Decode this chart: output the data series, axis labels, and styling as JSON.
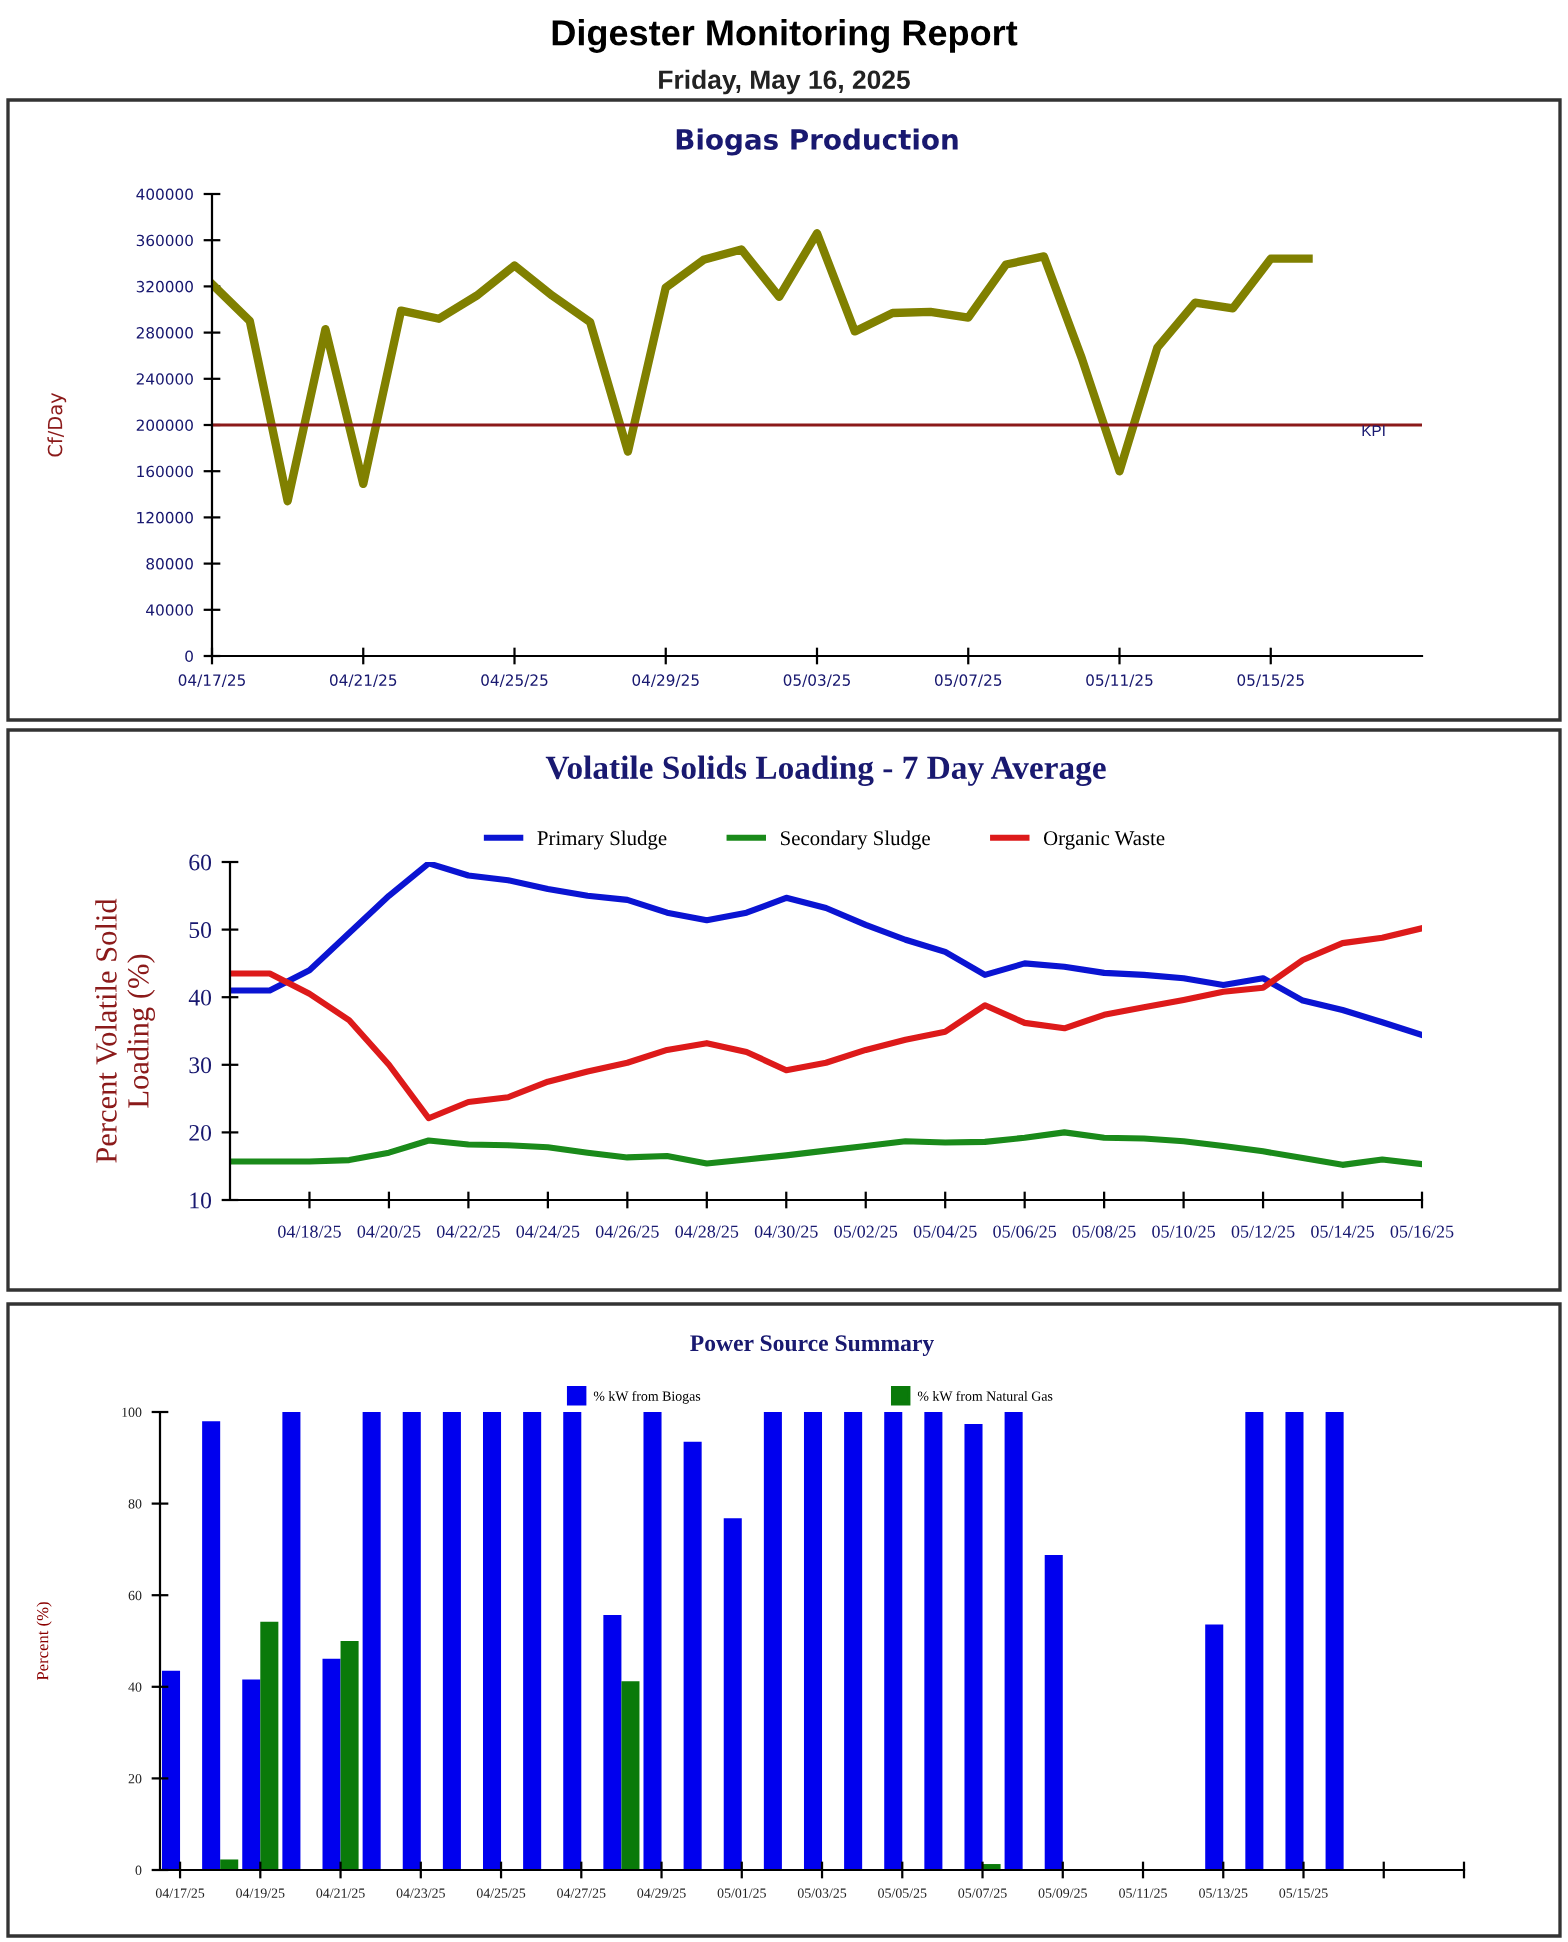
{
  "chart_data": [
    {
      "type": "other",
      "title": "Digester Monitoring Report",
      "subtitle": "Friday, May 16, 2025"
    },
    {
      "type": "line",
      "title": "Biogas Production",
      "ylabel": "Cf/Day",
      "grid": false,
      "legend": false,
      "marker": "none",
      "line_style": "solid",
      "x": [
        "2025-04-17",
        "2025-04-18",
        "2025-04-19",
        "2025-04-20",
        "2025-04-21",
        "2025-04-22",
        "2025-04-23",
        "2025-04-24",
        "2025-04-25",
        "2025-04-26",
        "2025-04-27",
        "2025-04-28",
        "2025-04-29",
        "2025-04-30",
        "2025-05-01",
        "2025-05-02",
        "2025-05-03",
        "2025-05-04",
        "2025-05-05",
        "2025-05-06",
        "2025-05-07",
        "2025-05-08",
        "2025-05-09",
        "2025-05-10",
        "2025-05-11",
        "2025-05-12",
        "2025-05-13",
        "2025-05-14",
        "2025-05-15",
        "2025-05-16"
      ],
      "series": [
        {
          "color": "#808000",
          "values": [
            322000,
            290000,
            134000,
            283000,
            149000,
            299000,
            292000,
            312000,
            338000,
            312000,
            289000,
            177000,
            319000,
            343000,
            352000,
            311000,
            366000,
            281000,
            297000,
            298000,
            293000,
            339000,
            346000,
            258000,
            160000,
            267000,
            306000,
            301000,
            344000,
            344000
          ]
        }
      ],
      "ylim": [
        0,
        400000
      ],
      "yticks": [
        0,
        40000,
        80000,
        120000,
        160000,
        200000,
        240000,
        280000,
        320000,
        360000,
        400000
      ],
      "xlim": [
        "2025-04-17",
        "2025-05-19"
      ],
      "xticks": [
        {
          "value": "2025-04-17",
          "label": "04/17/25"
        },
        {
          "value": "2025-04-21",
          "label": "04/21/25"
        },
        {
          "value": "2025-04-25",
          "label": "04/25/25"
        },
        {
          "value": "2025-04-29",
          "label": "04/29/25"
        },
        {
          "value": "2025-05-03",
          "label": "05/03/25"
        },
        {
          "value": "2025-05-07",
          "label": "05/07/25"
        },
        {
          "value": "2025-05-11",
          "label": "05/11/25"
        },
        {
          "value": "2025-05-15",
          "label": "05/15/25"
        }
      ],
      "ref_lines": [
        {
          "axis": "y",
          "value": 200000,
          "label": "KPI",
          "color": "#8b1a1a",
          "line_style": "solid"
        }
      ]
    },
    {
      "type": "line",
      "title": "Volatile Solids Loading - 7 Day Average",
      "ylabel": "Percent Volatile Solid Loading (%)",
      "grid": false,
      "legend": "top",
      "marker": "none",
      "line_style": "solid",
      "x": [
        "2025-04-16",
        "2025-04-17",
        "2025-04-18",
        "2025-04-19",
        "2025-04-20",
        "2025-04-21",
        "2025-04-22",
        "2025-04-23",
        "2025-04-24",
        "2025-04-25",
        "2025-04-26",
        "2025-04-27",
        "2025-04-28",
        "2025-04-29",
        "2025-04-30",
        "2025-05-01",
        "2025-05-02",
        "2025-05-03",
        "2025-05-04",
        "2025-05-05",
        "2025-05-06",
        "2025-05-07",
        "2025-05-08",
        "2025-05-09",
        "2025-05-10",
        "2025-05-11",
        "2025-05-12",
        "2025-05-13",
        "2025-05-14",
        "2025-05-15",
        "2025-05-16"
      ],
      "series": [
        {
          "name": "Primary Sludge",
          "color": "#0a14d2",
          "values": [
            41,
            41,
            44,
            49.5,
            55,
            59.8,
            58,
            57.3,
            56,
            55,
            54.4,
            52.5,
            51.4,
            52.5,
            54.7,
            53.2,
            50.7,
            48.5,
            46.7,
            43.3,
            45,
            44.5,
            43.6,
            43.3,
            42.8,
            41.8,
            42.8,
            39.5,
            38.1,
            36.3,
            34.4
          ]
        },
        {
          "name": "Secondary Sludge",
          "color": "#1a8a1a",
          "values": [
            15.7,
            15.7,
            15.7,
            15.9,
            17,
            18.8,
            18.2,
            18.1,
            17.8,
            17,
            16.3,
            16.5,
            15.4,
            16,
            16.6,
            17.3,
            18,
            18.7,
            18.5,
            18.6,
            19.2,
            20,
            19.2,
            19.1,
            18.7,
            18,
            17.2,
            16.2,
            15.2,
            16,
            15.3
          ]
        },
        {
          "name": "Organic Waste",
          "color": "#dd1a1a",
          "values": [
            43.5,
            43.5,
            40.5,
            36.6,
            30,
            22.1,
            24.5,
            25.2,
            27.5,
            29,
            30.3,
            32.2,
            33.2,
            31.9,
            29.2,
            30.3,
            32.2,
            33.7,
            34.9,
            38.8,
            36.2,
            35.4,
            37.4,
            38.5,
            39.6,
            40.8,
            41.4,
            45.5,
            48,
            48.8,
            50.2
          ]
        }
      ],
      "ylim": [
        10,
        60
      ],
      "yticks": [
        10,
        20,
        30,
        40,
        50,
        60
      ],
      "xlim": [
        "2025-04-16",
        "2025-05-16"
      ],
      "xticks": [
        {
          "value": "2025-04-18",
          "label": "04/18/25"
        },
        {
          "value": "2025-04-20",
          "label": "04/20/25"
        },
        {
          "value": "2025-04-22",
          "label": "04/22/25"
        },
        {
          "value": "2025-04-24",
          "label": "04/24/25"
        },
        {
          "value": "2025-04-26",
          "label": "04/26/25"
        },
        {
          "value": "2025-04-28",
          "label": "04/28/25"
        },
        {
          "value": "2025-04-30",
          "label": "04/30/25"
        },
        {
          "value": "2025-05-02",
          "label": "05/02/25"
        },
        {
          "value": "2025-05-04",
          "label": "05/04/25"
        },
        {
          "value": "2025-05-06",
          "label": "05/06/25"
        },
        {
          "value": "2025-05-08",
          "label": "05/08/25"
        },
        {
          "value": "2025-05-10",
          "label": "05/10/25"
        },
        {
          "value": "2025-05-12",
          "label": "05/12/25"
        },
        {
          "value": "2025-05-14",
          "label": "05/14/25"
        },
        {
          "value": "2025-05-16",
          "label": "05/16/25"
        }
      ]
    },
    {
      "type": "bar",
      "title": "Power Source Summary",
      "ylabel": "Percent (%)",
      "grid": false,
      "legend": "top",
      "x": [
        "2025-04-17",
        "2025-04-18",
        "2025-04-19",
        "2025-04-20",
        "2025-04-21",
        "2025-04-22",
        "2025-04-23",
        "2025-04-24",
        "2025-04-25",
        "2025-04-26",
        "2025-04-27",
        "2025-04-28",
        "2025-04-29",
        "2025-04-30",
        "2025-05-01",
        "2025-05-02",
        "2025-05-03",
        "2025-05-04",
        "2025-05-05",
        "2025-05-06",
        "2025-05-07",
        "2025-05-08",
        "2025-05-09",
        "2025-05-10",
        "2025-05-11",
        "2025-05-12",
        "2025-05-13",
        "2025-05-14",
        "2025-05-15",
        "2025-05-16"
      ],
      "series": [
        {
          "name": "% kW from Biogas",
          "color": "#0000ee",
          "values": [
            43.5,
            98,
            41.6,
            100,
            46.1,
            100,
            100,
            100,
            100,
            100,
            100,
            55.7,
            100,
            93.5,
            76.8,
            100,
            100,
            100,
            100,
            100,
            97.4,
            100,
            68.8,
            null,
            null,
            null,
            53.6,
            100,
            100,
            100
          ]
        },
        {
          "name": "% kW from Natural Gas",
          "color": "#0a7a0a",
          "values": [
            0,
            2.3,
            54.2,
            null,
            50,
            null,
            null,
            null,
            null,
            null,
            null,
            41.2,
            null,
            null,
            null,
            null,
            null,
            null,
            null,
            null,
            1.3,
            null,
            null,
            null,
            null,
            null,
            null,
            null,
            null,
            null
          ]
        }
      ],
      "ylim": [
        0,
        100
      ],
      "yticks": [
        0,
        20,
        40,
        60,
        80,
        100
      ],
      "xlim": [
        "2025-04-16T12:00",
        "2025-05-19"
      ],
      "xticks": [
        {
          "value": "2025-04-17",
          "label": "04/17/25"
        },
        {
          "value": "2025-04-19",
          "label": "04/19/25"
        },
        {
          "value": "2025-04-21",
          "label": "04/21/25"
        },
        {
          "value": "2025-04-23",
          "label": "04/23/25"
        },
        {
          "value": "2025-04-25",
          "label": "04/25/25"
        },
        {
          "value": "2025-04-27",
          "label": "04/27/25"
        },
        {
          "value": "2025-04-29",
          "label": "04/29/25"
        },
        {
          "value": "2025-05-01",
          "label": "05/01/25"
        },
        {
          "value": "2025-05-03",
          "label": "05/03/25"
        },
        {
          "value": "2025-05-05",
          "label": "05/05/25"
        },
        {
          "value": "2025-05-07",
          "label": "05/07/25"
        },
        {
          "value": "2025-05-09",
          "label": "05/09/25"
        },
        {
          "value": "2025-05-11",
          "label": "05/11/25"
        },
        {
          "value": "2025-05-13",
          "label": "05/13/25"
        },
        {
          "value": "2025-05-15",
          "label": "05/15/25"
        },
        {
          "value": "2025-05-17",
          "label": null
        },
        {
          "value": "2025-05-19",
          "label": null
        }
      ]
    }
  ]
}
